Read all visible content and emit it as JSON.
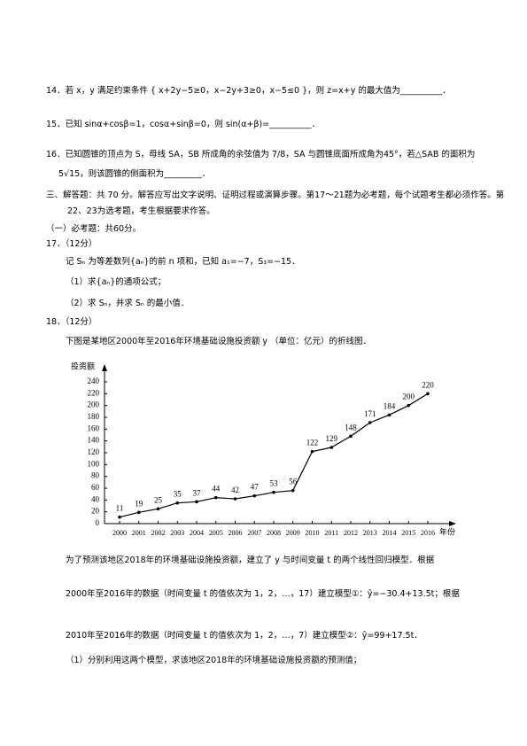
{
  "questions": [
    {
      "text": "14．若 x，y 满足约束条件 { x+2y−5≥0，x−2y+3≥0，x−5≤0 }，则 z=x+y 的最大值为__________．"
    },
    {
      "text": "15．已知 sinα+cosβ=1，cosα+sinβ=0，则 sin(α+β)=__________．"
    },
    {
      "text": "16．已知圆锥的顶点为 S，母线 SA，SB 所成角的余弦值为 7/8，SA 与圆锥底面所成角为45°，若△SAB 的面积为 5√15，则该圆锥的侧面积为_________．"
    }
  ],
  "section": {
    "title": "三、解答题：共 70 分。解答应写出文字说明、证明过程或演算步骤。第17～21题为必考题，每个试题考生都必须作答。第22、23为选考题，考生根据要求作答。",
    "subtitle": "（一）必考题：共60分。"
  },
  "q17": {
    "head": "17．（12分）",
    "stem": "记 Sₙ 为等差数列{aₙ}的前 n 项和，已知 a₁=−7，S₃=−15．",
    "parts": [
      "（1）求{aₙ}的通项公式；",
      "（2）求 Sₙ，并求 Sₙ 的最小值．"
    ]
  },
  "q18": {
    "head": "18．（12分）",
    "intro": "下图是某地区2000年至2016年环境基础设施投资额 y （单位：亿元）的折线图．",
    "lines": [
      "为了预测该地区2018年的环境基础设施投资额，建立了 y 与时间变量 t 的两个线性回归模型．根据",
      "2000年至2016年的数据（时间变量 t 的值依次为 1，2，…，17）建立模型①：ŷ=−30.4+13.5t；根据",
      "2010年至2016年的数据（时间变量 t 的值依次为 1，2，…，7）建立模型②：ŷ=99+17.5t．",
      "（1）分别利用这两个模型，求该地区2018年的环境基础设施投资额的预测值；"
    ]
  },
  "chart_data": {
    "type": "line",
    "y_label": "投资额",
    "x_label": "年份",
    "categories": [
      "2000",
      "2001",
      "2002",
      "2003",
      "2004",
      "2005",
      "2006",
      "2007",
      "2008",
      "2009",
      "2010",
      "2011",
      "2012",
      "2013",
      "2014",
      "2015",
      "2016"
    ],
    "values": [
      11,
      19,
      25,
      35,
      37,
      44,
      42,
      47,
      53,
      56,
      122,
      129,
      148,
      171,
      184,
      200,
      220
    ],
    "color": "#000000",
    "ylim": [
      0,
      240
    ],
    "yticks": [
      0,
      20,
      40,
      60,
      80,
      100,
      120,
      140,
      160,
      180,
      200,
      220,
      240
    ]
  }
}
